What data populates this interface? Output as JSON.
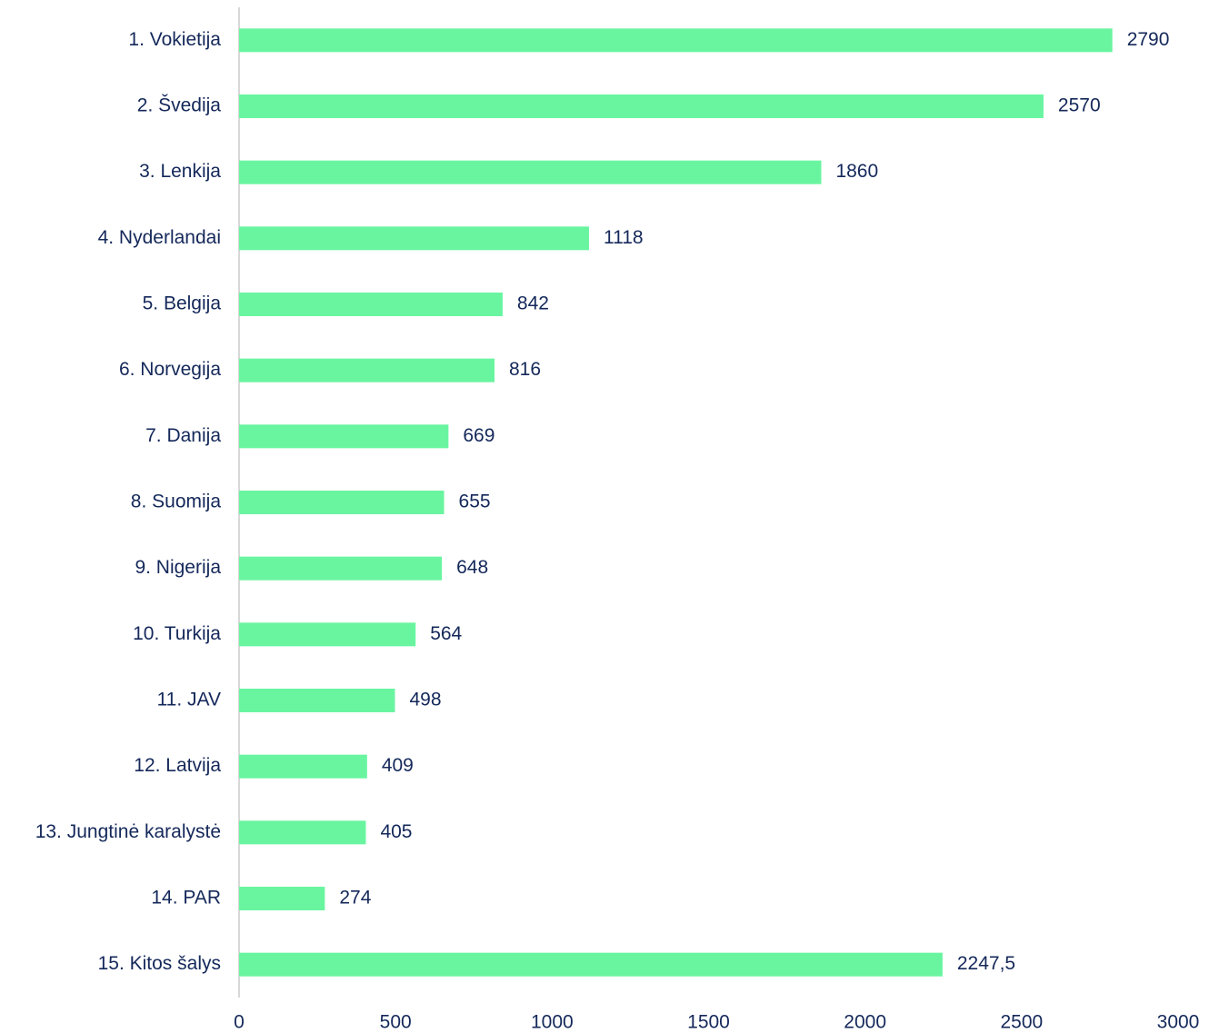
{
  "chart_data": {
    "type": "barh",
    "categories": [
      "1. Vokietija",
      "2. Švedija",
      "3. Lenkija",
      "4. Nyderlandai",
      "5. Belgija",
      "6. Norvegija",
      "7. Danija",
      "8. Suomija",
      "9. Nigerija",
      "10. Turkija",
      "11. JAV",
      "12. Latvija",
      "13. Jungtinė karalystė",
      "14. PAR",
      "15. Kitos šalys"
    ],
    "values": [
      2790,
      2570,
      1860,
      1118,
      842,
      816,
      669,
      655,
      648,
      564,
      498,
      409,
      405,
      274,
      2247.5
    ],
    "value_labels": [
      "2790",
      "2570",
      "1860",
      "1118",
      "842",
      "816",
      "669",
      "655",
      "648",
      "564",
      "498",
      "409",
      "405",
      "274",
      "2247,5"
    ],
    "color": "#69f5a0",
    "xlim": [
      0,
      3000
    ],
    "xticks": [
      0,
      500,
      1000,
      1500,
      2000,
      2500,
      3000
    ],
    "grid": false
  }
}
